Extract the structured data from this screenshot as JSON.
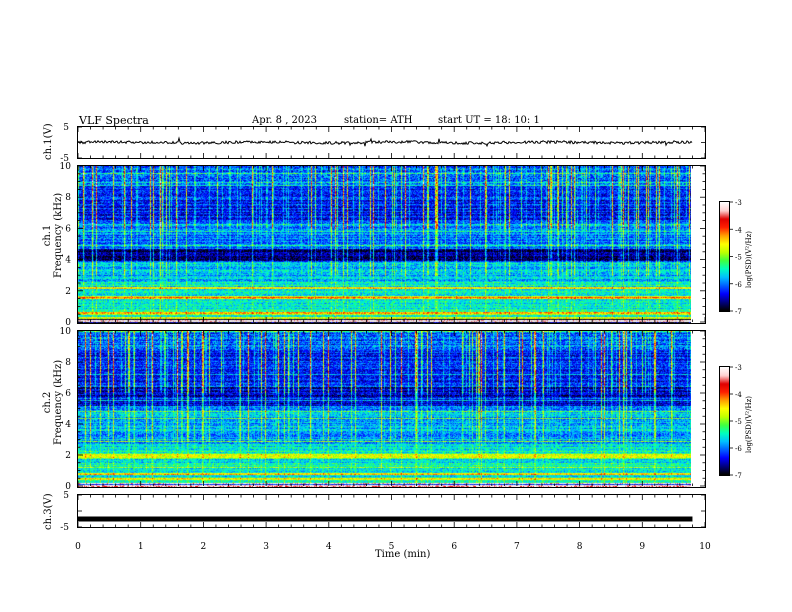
{
  "header": {
    "title": "VLF  Spectra",
    "date": "Apr. 8  , 2023",
    "station": "station= ATH",
    "start": "start  UT  =   18: 10: 1"
  },
  "chart_data": [
    {
      "type": "line",
      "panel": "ch1-waveform",
      "ylabel": "ch.1(V)",
      "ylim": [
        -5,
        5
      ],
      "yticks": [
        "5",
        "-5"
      ],
      "xlim": [
        0,
        10
      ],
      "series": [
        {
          "values_summary": "noisy trace centred near 0 V, range about -1 to +1 V, ending at 9.8 min"
        }
      ]
    },
    {
      "type": "heatmap",
      "panel": "ch1-spectrogram",
      "ylabel": "ch.1\nFrequency (kHz)",
      "ylim": [
        0,
        10
      ],
      "yticks": [
        "0",
        "2",
        "4",
        "6",
        "8",
        "10"
      ],
      "xlim": [
        0,
        10
      ],
      "data_end_min": 9.8,
      "colorbar": {
        "label": "log(PSD)(V²/Hz)",
        "range": [
          -7,
          -3
        ],
        "ticks": [
          "-3",
          "-4",
          "-5",
          "-6",
          "-7"
        ]
      },
      "features": {
        "dark_band_khz": [
          3.9,
          4.7
        ],
        "bright_bands_khz": [
          2.2,
          1.6,
          0.6,
          0.3
        ],
        "sferics": "frequent vertical impulsive streaks, strongest above 6 kHz"
      }
    },
    {
      "type": "heatmap",
      "panel": "ch2-spectrogram",
      "ylabel": "ch.2\nFrequency (kHz)",
      "ylim": [
        0,
        10
      ],
      "yticks": [
        "0",
        "2",
        "4",
        "6",
        "8",
        "10"
      ],
      "xlim": [
        0,
        10
      ],
      "data_end_min": 9.8,
      "colorbar": {
        "label": "log(PSD)(V²/Hz)",
        "range": [
          -7,
          -3
        ],
        "ticks": [
          "-3",
          "-4",
          "-5",
          "-6",
          "-7"
        ]
      },
      "features": {
        "dark_band_khz": [
          5.2,
          6.4
        ],
        "bright_bands_khz": [
          2.0,
          1.9,
          0.8,
          0.5
        ],
        "sferics": "frequent vertical impulsive streaks, strongest above 6 kHz"
      }
    },
    {
      "type": "line",
      "panel": "ch3-waveform",
      "ylabel": "ch.3(V)",
      "ylim": [
        -5,
        5
      ],
      "yticks": [
        "5",
        "-5"
      ],
      "xlim": [
        0,
        10
      ],
      "series": [
        {
          "values_summary": "flat thick line at about -2.5 V until 9.8 min"
        }
      ]
    }
  ],
  "x_axis": {
    "label": "Time  (min)",
    "ticks": [
      "0",
      "1",
      "2",
      "3",
      "4",
      "5",
      "6",
      "7",
      "8",
      "9",
      "10"
    ]
  },
  "colors": {
    "ink": "#000000",
    "colormap": [
      "#000000",
      "#000080",
      "#0000ff",
      "#0060ff",
      "#00c0ff",
      "#00ffc0",
      "#40ff40",
      "#c0ff00",
      "#ffff00",
      "#ffa000",
      "#ff2000",
      "#e00000",
      "#ffd0d0",
      "#ffffff"
    ]
  }
}
